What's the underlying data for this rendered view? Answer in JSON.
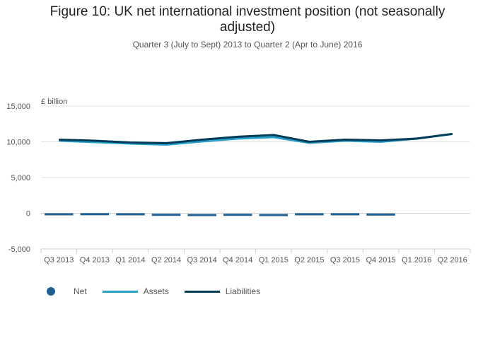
{
  "chart_data": {
    "type": "line",
    "title": "Figure 10: UK net international investment position (not seasonally adjusted)",
    "subtitle": "Quarter 3 (July to Sept) 2013 to Quarter 2 (Apr to June) 2016",
    "ylabel": "£ billion",
    "xlabel": "",
    "ylim": [
      -5000,
      15000
    ],
    "yticks": [
      15000,
      10000,
      5000,
      0,
      -5000
    ],
    "ytick_labels": [
      "15,000",
      "10,000",
      "5,000",
      "0",
      "-5,000"
    ],
    "categories": [
      "Q3 2013",
      "Q4 2013",
      "Q1 2014",
      "Q2 2014",
      "Q3 2014",
      "Q4 2014",
      "Q1 2015",
      "Q2 2015",
      "Q3 2015",
      "Q4 2015",
      "Q1 2016",
      "Q2 2016"
    ],
    "series": [
      {
        "name": "Net",
        "style": "dash",
        "color": "#206095",
        "values": [
          -150,
          -130,
          -150,
          -220,
          -260,
          -220,
          -260,
          -150,
          -150,
          -180,
          null,
          null
        ]
      },
      {
        "name": "Assets",
        "style": "line",
        "color": "#27a0cc",
        "values": [
          10150,
          9950,
          9750,
          9600,
          10050,
          10450,
          10650,
          9850,
          10150,
          10000,
          10450,
          11100
        ]
      },
      {
        "name": "Liabilities",
        "style": "line",
        "color": "#003c57",
        "values": [
          10300,
          10150,
          9900,
          9800,
          10300,
          10700,
          10950,
          10000,
          10300,
          10200,
          10450,
          11100
        ]
      }
    ],
    "legend": [
      {
        "label": "Net",
        "symbol": "dot",
        "color": "#206095"
      },
      {
        "label": "Assets",
        "symbol": "line",
        "color": "#27a0cc"
      },
      {
        "label": "Liabilities",
        "symbol": "line",
        "color": "#003c57"
      }
    ],
    "legend_position": "bottom-left",
    "grid": true
  }
}
